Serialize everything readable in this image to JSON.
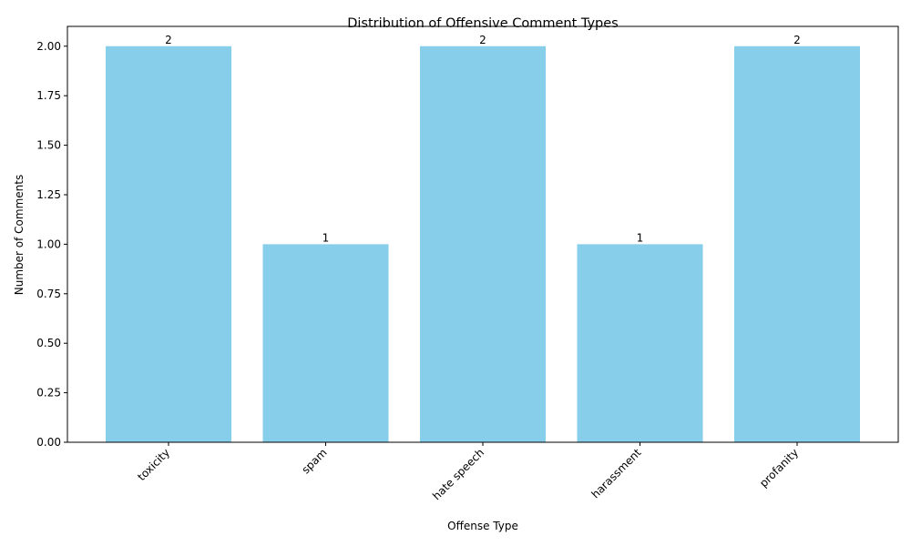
{
  "chart_data": {
    "type": "bar",
    "title": "Distribution of Offensive Comment Types",
    "xlabel": "Offense Type",
    "ylabel": "Number of Comments",
    "categories": [
      "toxicity",
      "spam",
      "hate speech",
      "harassment",
      "profanity"
    ],
    "values": [
      2,
      1,
      2,
      1,
      2
    ],
    "data_labels": [
      "2",
      "1",
      "2",
      "1",
      "2"
    ],
    "ylim": [
      0,
      2.1
    ],
    "yticks": [
      0,
      0.25,
      0.5,
      0.75,
      1.0,
      1.25,
      1.5,
      1.75,
      2.0
    ],
    "ytick_labels": [
      "0.00",
      "0.25",
      "0.50",
      "0.75",
      "1.00",
      "1.25",
      "1.50",
      "1.75",
      "2.00"
    ],
    "x_tick_rotation": 45,
    "grid": false,
    "bar_color": "#87CEEB"
  }
}
